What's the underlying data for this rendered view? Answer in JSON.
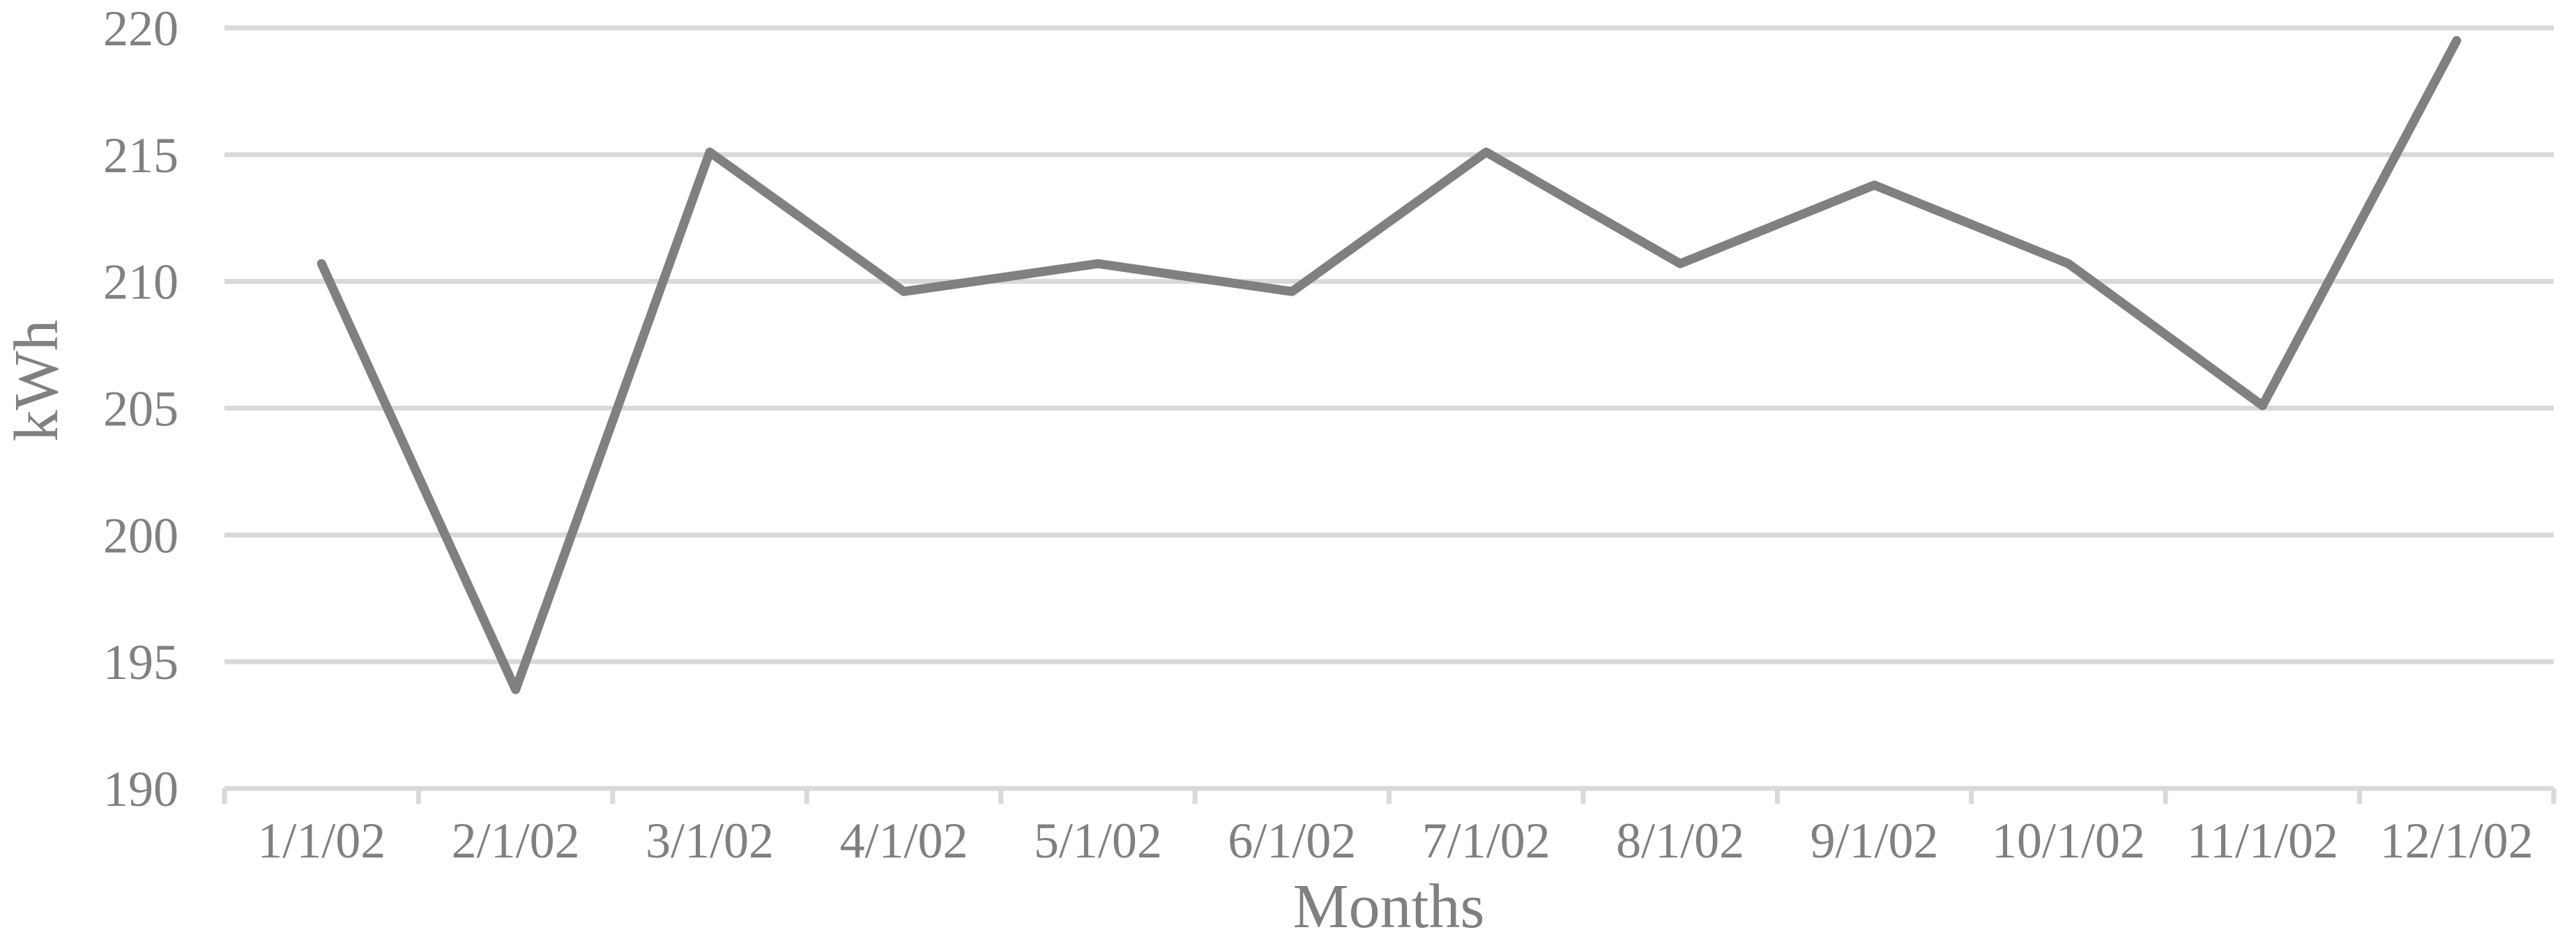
{
  "chart_data": {
    "type": "line",
    "title": "",
    "categories": [
      "1/1/02",
      "2/1/02",
      "3/1/02",
      "4/1/02",
      "5/1/02",
      "6/1/02",
      "7/1/02",
      "8/1/02",
      "9/1/02",
      "10/1/02",
      "11/1/02",
      "12/1/02"
    ],
    "series": [
      {
        "name": "kWh",
        "values": [
          210.7,
          193.9,
          215.1,
          209.6,
          210.7,
          209.6,
          215.1,
          210.7,
          213.8,
          210.7,
          205.1,
          219.5
        ]
      }
    ],
    "xlabel": "Months",
    "ylabel": "kWh",
    "ylim": [
      190,
      220
    ],
    "yticks": [
      220,
      215,
      210,
      205,
      200,
      195,
      190
    ],
    "ytick_step": 5,
    "grid": "horizontal-only",
    "legend_position": "none",
    "x_axis_tick_marks": "outside-at-category-boundaries"
  },
  "colors": {
    "background": "#ffffff",
    "series_line": "#808080",
    "gridline": "#d9d9d9",
    "axis_line": "#d9d9d9",
    "tick_mark": "#d9d9d9",
    "text": "#808080"
  }
}
